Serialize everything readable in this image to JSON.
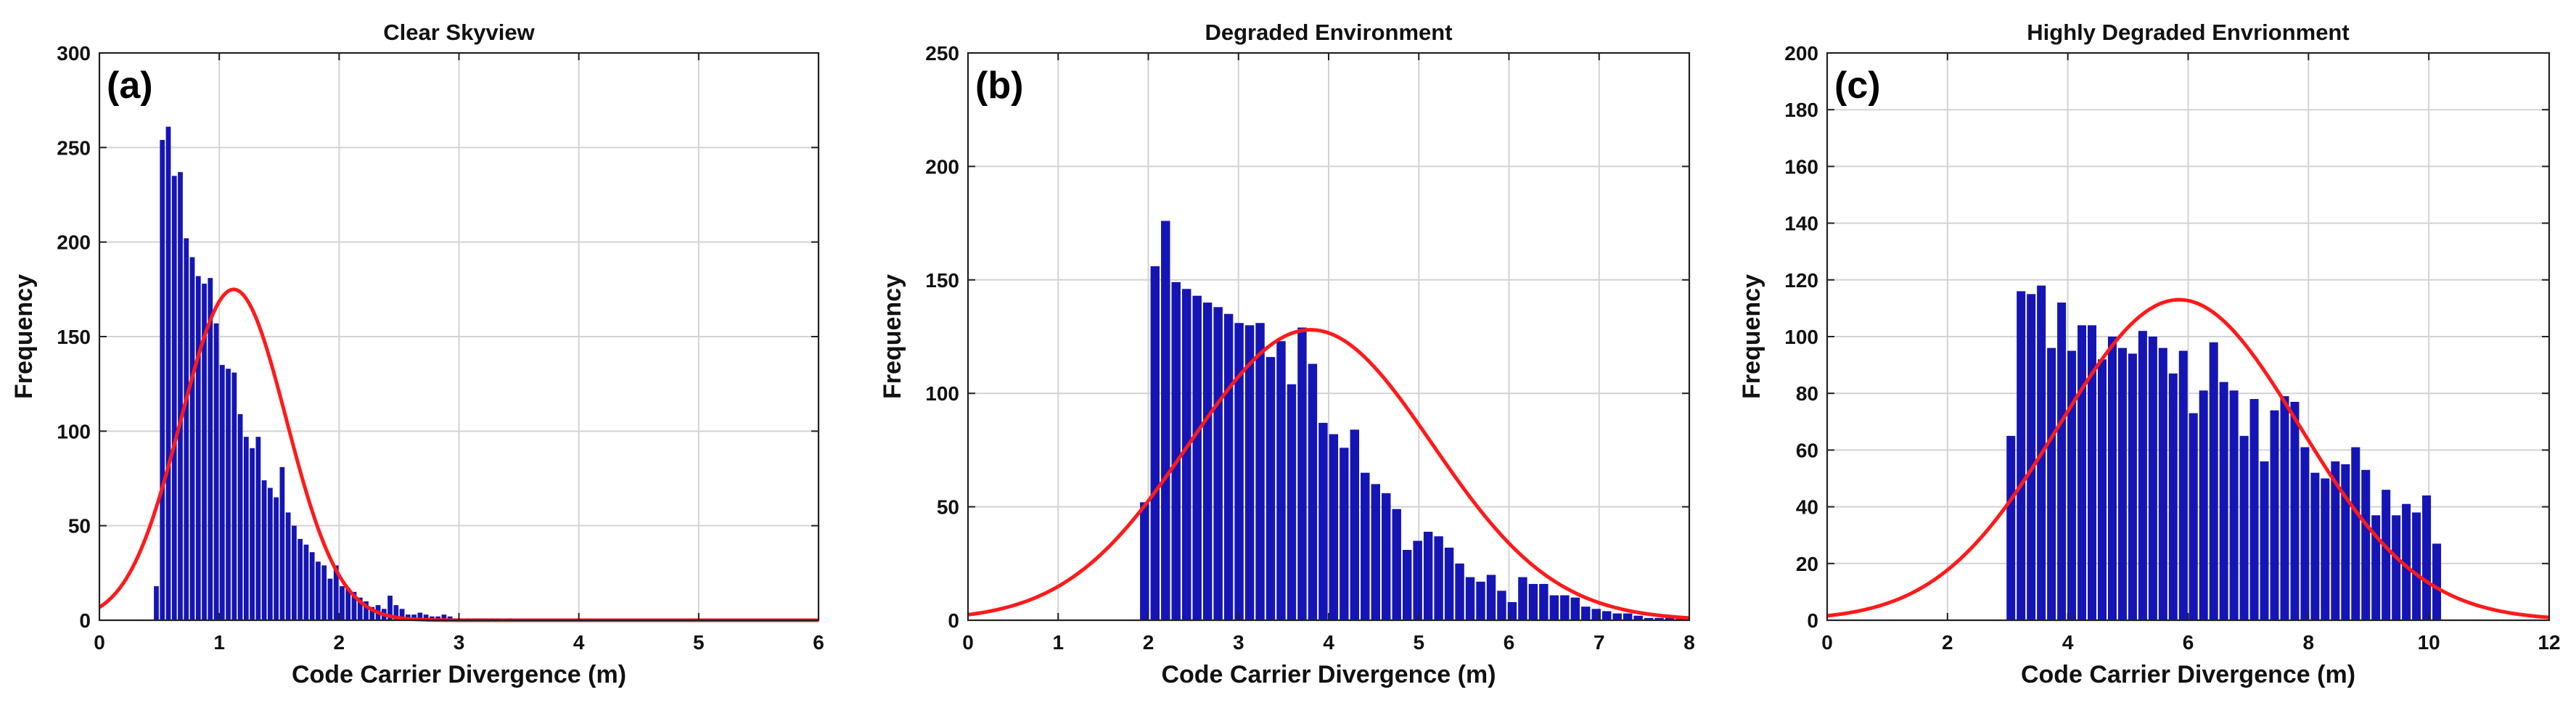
{
  "colors": {
    "bar": "#1515b5",
    "curve": "#ff1a1a",
    "grid": "#d3d3d3",
    "axis": "#222222"
  },
  "chart_data": [
    {
      "type": "bar",
      "panel_label": "(a)",
      "title": "Clear Skyview",
      "xlabel": "Code Carrier Divergence (m)",
      "ylabel": "Frequency",
      "xlim": [
        0,
        6
      ],
      "ylim": [
        0,
        300
      ],
      "xticks": [
        0,
        1,
        2,
        3,
        4,
        5,
        6
      ],
      "yticks": [
        0,
        50,
        100,
        150,
        200,
        250,
        300
      ],
      "grid": true,
      "bin_start": 0.45,
      "bin_width": 0.05,
      "values": [
        18,
        254,
        261,
        235,
        237,
        202,
        192,
        182,
        178,
        181,
        157,
        135,
        133,
        131,
        109,
        97,
        91,
        97,
        74,
        70,
        65,
        81,
        57,
        50,
        43,
        40,
        36,
        31,
        29,
        22,
        29,
        18,
        17,
        15,
        12,
        10,
        7,
        8,
        6,
        13,
        8,
        6,
        3,
        3,
        4,
        3,
        2,
        2,
        3,
        2,
        1,
        1,
        1,
        1,
        1,
        1,
        1,
        1,
        0,
        1
      ],
      "fit_curve": {
        "name": "Normal fit",
        "mean": 1.12,
        "sd": 0.44,
        "peak": 175
      }
    },
    {
      "type": "bar",
      "panel_label": "(b)",
      "title": "Degraded Environment",
      "xlabel": "Code Carrier Divergence (m)",
      "ylabel": "Frequency",
      "xlim": [
        0,
        8
      ],
      "ylim": [
        0,
        250
      ],
      "xticks": [
        0,
        1,
        2,
        3,
        4,
        5,
        6,
        7,
        8
      ],
      "yticks": [
        0,
        50,
        100,
        150,
        200,
        250
      ],
      "grid": true,
      "bin_start": 1.9,
      "bin_width": 0.1165,
      "values": [
        52,
        156,
        176,
        149,
        146,
        143,
        140,
        138,
        135,
        131,
        130,
        131,
        116,
        123,
        104,
        129,
        113,
        87,
        82,
        76,
        84,
        65,
        60,
        56,
        49,
        31,
        35,
        39,
        37,
        32,
        25,
        19,
        17,
        20,
        13,
        8,
        19,
        16,
        16,
        11,
        11,
        10,
        6,
        5,
        4,
        3,
        3,
        2,
        1,
        1,
        1,
        1,
        0
      ],
      "fit_curve": {
        "name": "Normal fit",
        "mean": 3.8,
        "sd": 1.35,
        "peak": 128
      }
    },
    {
      "type": "bar",
      "panel_label": "(c)",
      "title": "Highly Degraded Envrionment",
      "xlabel": "Code Carrier Divergence (m)",
      "ylabel": "Frequency",
      "xlim": [
        0,
        12
      ],
      "ylim": [
        0,
        200
      ],
      "xticks": [
        0,
        2,
        4,
        6,
        8,
        10,
        12
      ],
      "yticks": [
        0,
        20,
        40,
        60,
        80,
        100,
        120,
        140,
        160,
        180,
        200
      ],
      "grid": true,
      "bin_start": 2.97,
      "bin_width": 0.1685,
      "values": [
        65,
        116,
        115,
        118,
        96,
        112,
        95,
        104,
        104,
        92,
        100,
        96,
        94,
        102,
        100,
        96,
        87,
        95,
        73,
        81,
        98,
        84,
        81,
        65,
        78,
        56,
        74,
        79,
        77,
        61,
        52,
        50,
        56,
        55,
        61,
        53,
        37,
        46,
        37,
        41,
        38,
        44,
        27
      ],
      "fit_curve": {
        "name": "Normal fit",
        "mean": 5.85,
        "sd": 2.0,
        "peak": 113
      }
    }
  ]
}
